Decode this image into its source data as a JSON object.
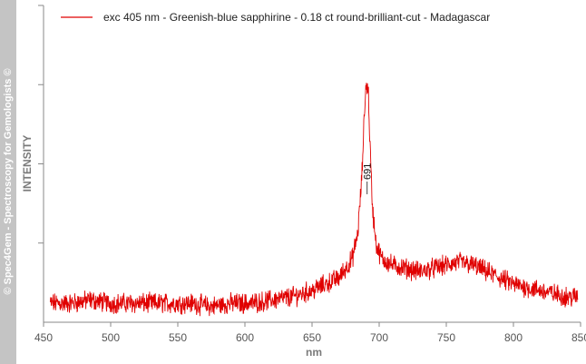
{
  "watermark": "© Spec4Gem - Spectroscopy for Gemologists ©",
  "colors": {
    "series": "#e00000",
    "axis": "#888888",
    "watermark_bg": "#c4c4c4"
  },
  "chart_data": {
    "type": "line",
    "title": "",
    "xlabel": "nm",
    "ylabel": "INTENSITY",
    "xlim": [
      450,
      850
    ],
    "ylim": [
      0,
      100
    ],
    "x_ticks": [
      450,
      500,
      550,
      600,
      650,
      700,
      750,
      800,
      850
    ],
    "grid": false,
    "legend_position": "top-left",
    "series": [
      {
        "name": "exc 405 nm - Greenish-blue sapphirine - 0.18 ct round-brilliant-cut - Madagascar",
        "x": [
          455,
          470,
          485,
          500,
          515,
          530,
          545,
          560,
          575,
          590,
          605,
          620,
          635,
          650,
          660,
          670,
          675,
          680,
          684,
          687,
          689,
          690,
          691,
          692,
          693,
          695,
          698,
          702,
          706,
          710,
          720,
          730,
          740,
          750,
          760,
          770,
          780,
          790,
          800,
          810,
          820,
          830,
          840,
          848
        ],
        "y": [
          6,
          6,
          7,
          6,
          6,
          6,
          6,
          6,
          5,
          6,
          6,
          7,
          8,
          10,
          12,
          14,
          17,
          20,
          28,
          45,
          66,
          74,
          75,
          72,
          58,
          36,
          24,
          20,
          19,
          18,
          17,
          16,
          17,
          18,
          19,
          18,
          16,
          14,
          12,
          11,
          10,
          9,
          8,
          8
        ]
      }
    ],
    "annotations": [
      {
        "x": 691,
        "text": "691"
      }
    ]
  }
}
